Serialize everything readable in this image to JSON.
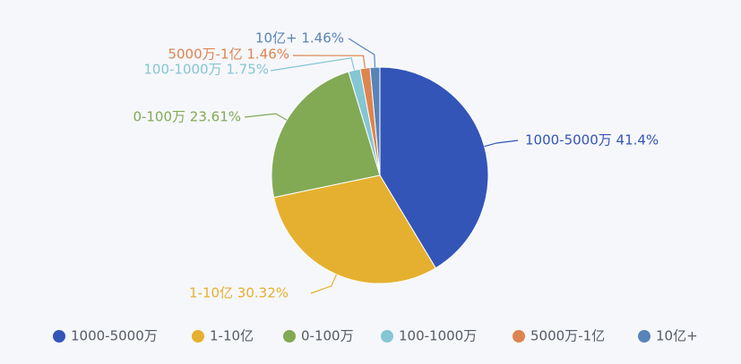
{
  "chart_data": {
    "type": "pie",
    "slices": [
      {
        "name": "1000-5000万",
        "value": 41.4,
        "label": "1000-5000万 41.4%",
        "color": "#3355b8"
      },
      {
        "name": "1-10亿",
        "value": 30.32,
        "label": "1-10亿 30.32%",
        "color": "#e5b02f"
      },
      {
        "name": "0-100万",
        "value": 23.61,
        "label": "0-100万 23.61%",
        "color": "#82aa55"
      },
      {
        "name": "100-1000万",
        "value": 1.75,
        "label": "100-1000万 1.75%",
        "color": "#84c6d3"
      },
      {
        "name": "5000万-1亿",
        "value": 1.46,
        "label": "5000万-1亿 1.46%",
        "color": "#dd8550"
      },
      {
        "name": "10亿+",
        "value": 1.46,
        "label": "10亿+ 1.46%",
        "color": "#5884b8"
      }
    ],
    "legend_position": "bottom"
  }
}
